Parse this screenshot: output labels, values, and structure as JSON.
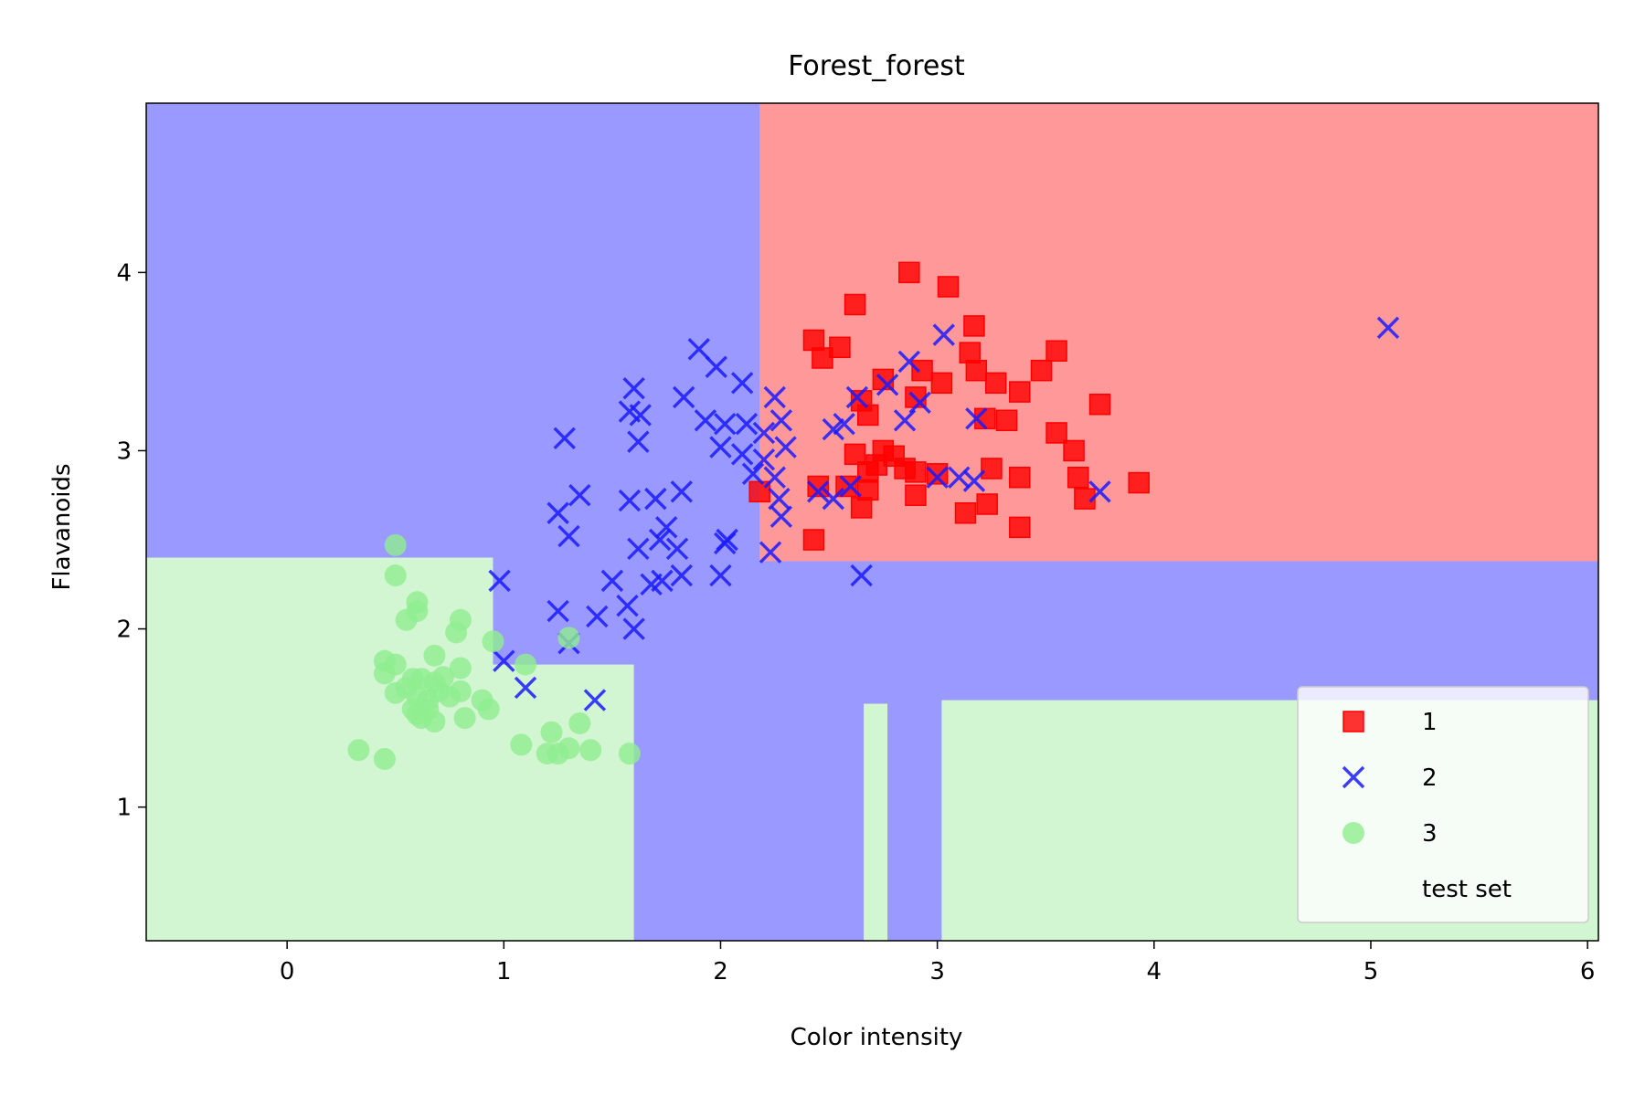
{
  "chart_data": {
    "type": "scatter",
    "title": "Forest_forest",
    "xlabel": "Color intensity",
    "ylabel": "Flavanoids",
    "xlim": [
      -0.65,
      6.05
    ],
    "ylim": [
      0.25,
      4.95
    ],
    "xticks": [
      0,
      1,
      2,
      3,
      4,
      5,
      6
    ],
    "yticks": [
      1,
      2,
      3,
      4
    ],
    "grid": false,
    "legend_position": "lower-right",
    "legend": [
      "1",
      "2",
      "3",
      "test set"
    ],
    "colors": {
      "class_1_marker": "#ff0000",
      "class_2_marker": "#1a1aff",
      "class_3_marker": "#90ee90",
      "region_1": "#ff9999",
      "region_2": "#9999ff",
      "region_3": "#d2f5d2"
    },
    "decision_regions": [
      {
        "class": "2",
        "x": [
          -0.65,
          6.05
        ],
        "y": [
          0.25,
          4.95
        ]
      },
      {
        "class": "1",
        "x": [
          2.18,
          6.05
        ],
        "y": [
          2.38,
          4.95
        ]
      },
      {
        "class": "3",
        "x": [
          -0.65,
          0.95
        ],
        "y": [
          0.25,
          2.4
        ]
      },
      {
        "class": "3",
        "x": [
          -0.65,
          1.6
        ],
        "y": [
          0.25,
          1.8
        ]
      },
      {
        "class": "3",
        "x": [
          2.66,
          2.77
        ],
        "y": [
          0.25,
          1.58
        ]
      },
      {
        "class": "3",
        "x": [
          3.02,
          6.05
        ],
        "y": [
          0.25,
          1.6
        ]
      }
    ],
    "series": [
      {
        "name": "1",
        "marker": "square",
        "points": [
          [
            2.87,
            4.0
          ],
          [
            3.05,
            3.92
          ],
          [
            2.62,
            3.82
          ],
          [
            3.17,
            3.7
          ],
          [
            2.43,
            3.62
          ],
          [
            2.55,
            3.58
          ],
          [
            2.47,
            3.52
          ],
          [
            3.15,
            3.55
          ],
          [
            3.55,
            3.56
          ],
          [
            3.48,
            3.45
          ],
          [
            3.27,
            3.38
          ],
          [
            3.38,
            3.33
          ],
          [
            3.02,
            3.38
          ],
          [
            2.75,
            3.4
          ],
          [
            2.93,
            3.45
          ],
          [
            3.18,
            3.45
          ],
          [
            3.75,
            3.26
          ],
          [
            2.65,
            3.28
          ],
          [
            2.68,
            3.2
          ],
          [
            2.9,
            3.3
          ],
          [
            3.22,
            3.18
          ],
          [
            3.32,
            3.17
          ],
          [
            3.55,
            3.1
          ],
          [
            3.63,
            3.0
          ],
          [
            2.75,
            3.0
          ],
          [
            2.8,
            2.97
          ],
          [
            2.72,
            2.92
          ],
          [
            2.85,
            2.9
          ],
          [
            2.68,
            2.88
          ],
          [
            2.9,
            2.88
          ],
          [
            2.62,
            2.98
          ],
          [
            3.25,
            2.9
          ],
          [
            3.38,
            2.85
          ],
          [
            3.65,
            2.85
          ],
          [
            3.93,
            2.82
          ],
          [
            2.45,
            2.8
          ],
          [
            2.58,
            2.8
          ],
          [
            2.68,
            2.78
          ],
          [
            2.9,
            2.75
          ],
          [
            3.68,
            2.73
          ],
          [
            2.18,
            2.77
          ],
          [
            2.65,
            2.68
          ],
          [
            3.13,
            2.65
          ],
          [
            3.23,
            2.7
          ],
          [
            2.43,
            2.5
          ],
          [
            3.38,
            2.57
          ],
          [
            3.0,
            2.87
          ]
        ]
      },
      {
        "name": "2",
        "marker": "x",
        "points": [
          [
            5.08,
            3.69
          ],
          [
            1.9,
            3.57
          ],
          [
            3.03,
            3.65
          ],
          [
            1.98,
            3.47
          ],
          [
            2.1,
            3.38
          ],
          [
            1.6,
            3.35
          ],
          [
            1.83,
            3.3
          ],
          [
            2.25,
            3.3
          ],
          [
            1.58,
            3.22
          ],
          [
            1.63,
            3.2
          ],
          [
            2.63,
            3.3
          ],
          [
            2.77,
            3.37
          ],
          [
            2.87,
            3.5
          ],
          [
            2.92,
            3.27
          ],
          [
            1.93,
            3.17
          ],
          [
            2.02,
            3.15
          ],
          [
            2.12,
            3.15
          ],
          [
            2.2,
            3.1
          ],
          [
            2.28,
            3.17
          ],
          [
            2.52,
            3.12
          ],
          [
            2.57,
            3.15
          ],
          [
            2.85,
            3.17
          ],
          [
            3.18,
            3.18
          ],
          [
            1.28,
            3.07
          ],
          [
            1.62,
            3.05
          ],
          [
            2.0,
            3.02
          ],
          [
            2.1,
            2.98
          ],
          [
            2.2,
            2.95
          ],
          [
            2.3,
            3.02
          ],
          [
            2.15,
            2.87
          ],
          [
            2.25,
            2.85
          ],
          [
            1.35,
            2.75
          ],
          [
            1.7,
            2.73
          ],
          [
            1.82,
            2.77
          ],
          [
            2.45,
            2.77
          ],
          [
            2.52,
            2.73
          ],
          [
            2.6,
            2.8
          ],
          [
            2.27,
            2.73
          ],
          [
            3.0,
            2.85
          ],
          [
            3.1,
            2.85
          ],
          [
            3.17,
            2.83
          ],
          [
            3.75,
            2.77
          ],
          [
            1.58,
            2.72
          ],
          [
            1.25,
            2.65
          ],
          [
            1.3,
            2.52
          ],
          [
            1.75,
            2.57
          ],
          [
            1.8,
            2.45
          ],
          [
            1.72,
            2.5
          ],
          [
            1.62,
            2.45
          ],
          [
            2.03,
            2.5
          ],
          [
            2.02,
            2.48
          ],
          [
            2.23,
            2.43
          ],
          [
            2.28,
            2.63
          ],
          [
            1.73,
            2.27
          ],
          [
            1.68,
            2.25
          ],
          [
            1.5,
            2.27
          ],
          [
            2.0,
            2.3
          ],
          [
            2.65,
            2.3
          ],
          [
            1.82,
            2.3
          ],
          [
            0.98,
            2.27
          ],
          [
            1.25,
            2.1
          ],
          [
            1.43,
            2.07
          ],
          [
            1.57,
            2.13
          ],
          [
            1.6,
            2.0
          ],
          [
            1.3,
            1.92
          ],
          [
            1.0,
            1.82
          ],
          [
            1.1,
            1.67
          ],
          [
            1.42,
            1.6
          ]
        ]
      },
      {
        "name": "3",
        "marker": "circle",
        "points": [
          [
            0.5,
            2.47
          ],
          [
            0.5,
            2.3
          ],
          [
            0.6,
            2.15
          ],
          [
            0.6,
            2.1
          ],
          [
            0.55,
            2.05
          ],
          [
            0.8,
            2.05
          ],
          [
            0.78,
            1.98
          ],
          [
            0.95,
            1.93
          ],
          [
            1.3,
            1.95
          ],
          [
            0.45,
            1.82
          ],
          [
            0.5,
            1.8
          ],
          [
            0.68,
            1.85
          ],
          [
            0.8,
            1.78
          ],
          [
            1.1,
            1.8
          ],
          [
            0.45,
            1.75
          ],
          [
            0.58,
            1.72
          ],
          [
            0.62,
            1.72
          ],
          [
            0.68,
            1.7
          ],
          [
            0.72,
            1.73
          ],
          [
            0.55,
            1.67
          ],
          [
            0.5,
            1.64
          ],
          [
            0.6,
            1.62
          ],
          [
            0.65,
            1.6
          ],
          [
            0.7,
            1.65
          ],
          [
            0.75,
            1.62
          ],
          [
            0.8,
            1.65
          ],
          [
            0.9,
            1.6
          ],
          [
            0.93,
            1.55
          ],
          [
            0.58,
            1.55
          ],
          [
            0.6,
            1.52
          ],
          [
            0.65,
            1.55
          ],
          [
            0.62,
            1.5
          ],
          [
            0.68,
            1.48
          ],
          [
            0.82,
            1.5
          ],
          [
            1.08,
            1.35
          ],
          [
            1.22,
            1.42
          ],
          [
            1.35,
            1.47
          ],
          [
            0.33,
            1.32
          ],
          [
            0.45,
            1.27
          ],
          [
            1.2,
            1.3
          ],
          [
            1.25,
            1.3
          ],
          [
            1.3,
            1.33
          ],
          [
            1.4,
            1.32
          ],
          [
            1.58,
            1.3
          ]
        ]
      }
    ]
  }
}
